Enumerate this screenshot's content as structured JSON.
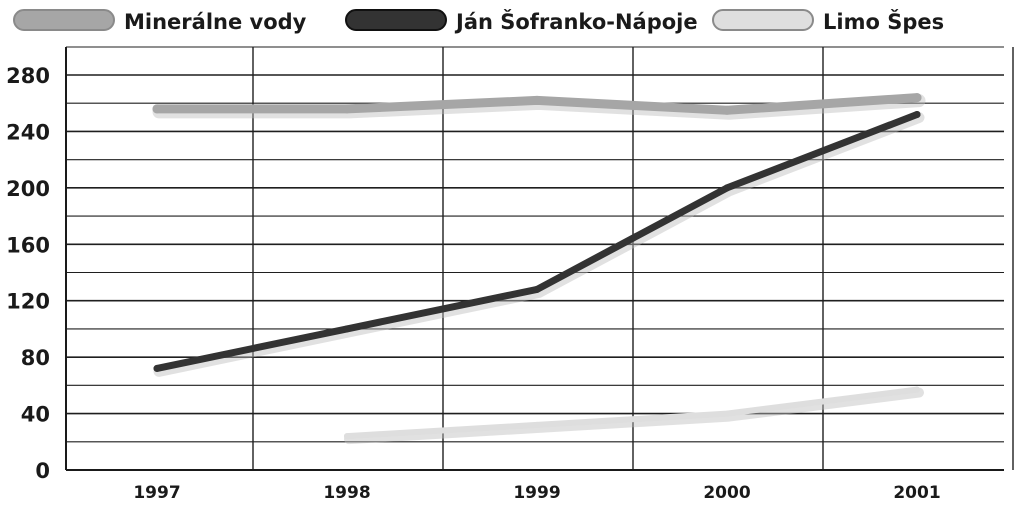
{
  "chart_data": {
    "type": "line",
    "title": "",
    "xlabel": "",
    "ylabel": "",
    "categories": [
      "1997",
      "1998",
      "1999",
      "2000",
      "2001"
    ],
    "ylim": [
      0,
      280
    ],
    "yticks": [
      "0",
      "40",
      "80",
      "120",
      "160",
      "200",
      "240",
      "280"
    ],
    "grid": true,
    "legend_position": "top",
    "series": [
      {
        "name": "Minerálne vody",
        "color": "#a6a6a6",
        "values": [
          256,
          256,
          262,
          255,
          264
        ]
      },
      {
        "name": "Ján Šofranko-Nápoje",
        "color": "#333333",
        "values": [
          72,
          100,
          128,
          200,
          252
        ]
      },
      {
        "name": "Limo Špes",
        "color": "#dedede",
        "values": [
          null,
          24,
          32,
          40,
          57
        ]
      }
    ]
  }
}
